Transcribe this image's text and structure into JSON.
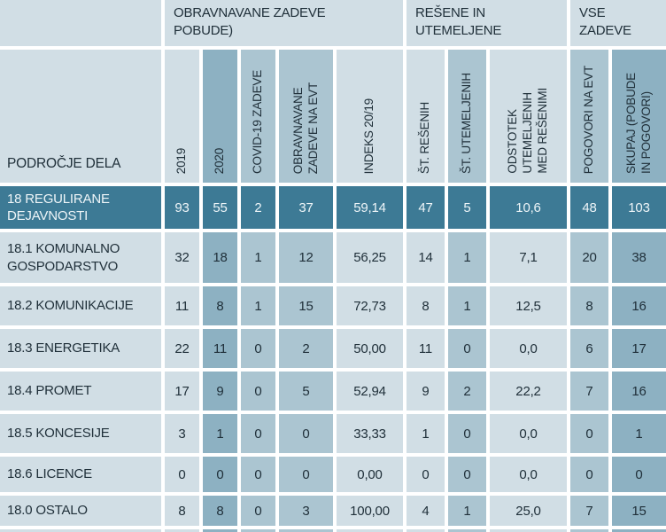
{
  "table": {
    "corner_header": "PODROČJE DELA",
    "groups": [
      {
        "label": "OBRAVNAVANE ZADEVE\nPOBUDE)"
      },
      {
        "label": "REŠENE IN\nUTEMELJENE"
      },
      {
        "label": "VSE\nZADEVE"
      }
    ],
    "columns": [
      {
        "label": "2019",
        "shade": "light"
      },
      {
        "label": "2020",
        "shade": "dark"
      },
      {
        "label": "COVID-19 ZADEVE",
        "shade": "medium"
      },
      {
        "label": "OBRAVNAVANE\nZADEVE NA EVT",
        "shade": "medium"
      },
      {
        "label": "INDEKS 20/19",
        "shade": "light"
      },
      {
        "label": "ŠT. REŠENIH",
        "shade": "light"
      },
      {
        "label": "ŠT. UTEMELJENIH",
        "shade": "medium"
      },
      {
        "label": "ODSTOTEK\nUTEMELJENIH\nMED REŠENIMI",
        "shade": "light"
      },
      {
        "label": "POGOVORI NA EVT",
        "shade": "medium"
      },
      {
        "label": "SKUPAJ (POBUDE\nIN POGOVORI)",
        "shade": "dark"
      }
    ],
    "rows": [
      {
        "label": "18 REGULIRANE\nDEJAVNOSTI",
        "highlighted": true,
        "values": [
          "93",
          "55",
          "2",
          "37",
          "59,14",
          "47",
          "5",
          "10,6",
          "48",
          "103"
        ]
      },
      {
        "label": "18.1 KOMUNALNO\nGOSPODARSTVO",
        "highlighted": false,
        "values": [
          "32",
          "18",
          "1",
          "12",
          "56,25",
          "14",
          "1",
          "7,1",
          "20",
          "38"
        ]
      },
      {
        "label": "18.2 KOMUNIKACIJE",
        "highlighted": false,
        "values": [
          "11",
          "8",
          "1",
          "15",
          "72,73",
          "8",
          "1",
          "12,5",
          "8",
          "16"
        ]
      },
      {
        "label": "18.3 ENERGETIKA",
        "highlighted": false,
        "values": [
          "22",
          "11",
          "0",
          "2",
          "50,00",
          "11",
          "0",
          "0,0",
          "6",
          "17"
        ]
      },
      {
        "label": "18.4 PROMET",
        "highlighted": false,
        "values": [
          "17",
          "9",
          "0",
          "5",
          "52,94",
          "9",
          "2",
          "22,2",
          "7",
          "16"
        ]
      },
      {
        "label": "18.5 KONCESIJE",
        "highlighted": false,
        "values": [
          "3",
          "1",
          "0",
          "0",
          "33,33",
          "1",
          "0",
          "0,0",
          "0",
          "1"
        ]
      },
      {
        "label": "18.6 LICENCE",
        "highlighted": false,
        "values": [
          "0",
          "0",
          "0",
          "0",
          "0,00",
          "0",
          "0",
          "0,0",
          "0",
          "0"
        ]
      },
      {
        "label": "18.0 OSTALO",
        "highlighted": false,
        "values": [
          "8",
          "8",
          "0",
          "3",
          "100,00",
          "4",
          "1",
          "25,0",
          "7",
          "15"
        ]
      }
    ],
    "colors": {
      "cell_light": "#d1dee5",
      "cell_medium": "#abc5d1",
      "cell_dark": "#8db1c2",
      "highlight_row": "#3d7a95",
      "grid_lines": "#ffffff",
      "text": "#20303a",
      "text_on_highlight": "#eef5f8"
    }
  }
}
